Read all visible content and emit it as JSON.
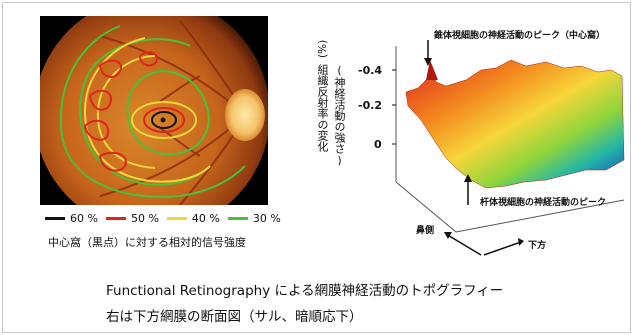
{
  "legend": [
    {
      "label": "60 %",
      "color": "#111111"
    },
    {
      "label": "50 %",
      "color": "#e2231a"
    },
    {
      "label": "40 %",
      "color": "#f2d53b"
    },
    {
      "label": "30 %",
      "color": "#45c23a"
    }
  ],
  "left_caption": "中心窩（黒点）に対する相対的信号強度",
  "right_figure": {
    "ylabel_unit": "(%)",
    "ylabel_main": "組織反射率の変化",
    "ylabel_sub": "(神経活動の強さ)",
    "ticks": [
      "-0.4",
      "-0.2",
      "0"
    ],
    "cone_annotation": "錐体視細胞の神経活動のピーク（中心窩）",
    "rod_annotation": "杆体視細胞の神経活動のピーク",
    "axis_nasal": "鼻側",
    "axis_inferior": "下方"
  },
  "caption_line1": "Functional Retinography による網膜神経活動のトポグラフィー",
  "caption_line2": "右は下方網膜の断面図（サル、暗順応下）"
}
